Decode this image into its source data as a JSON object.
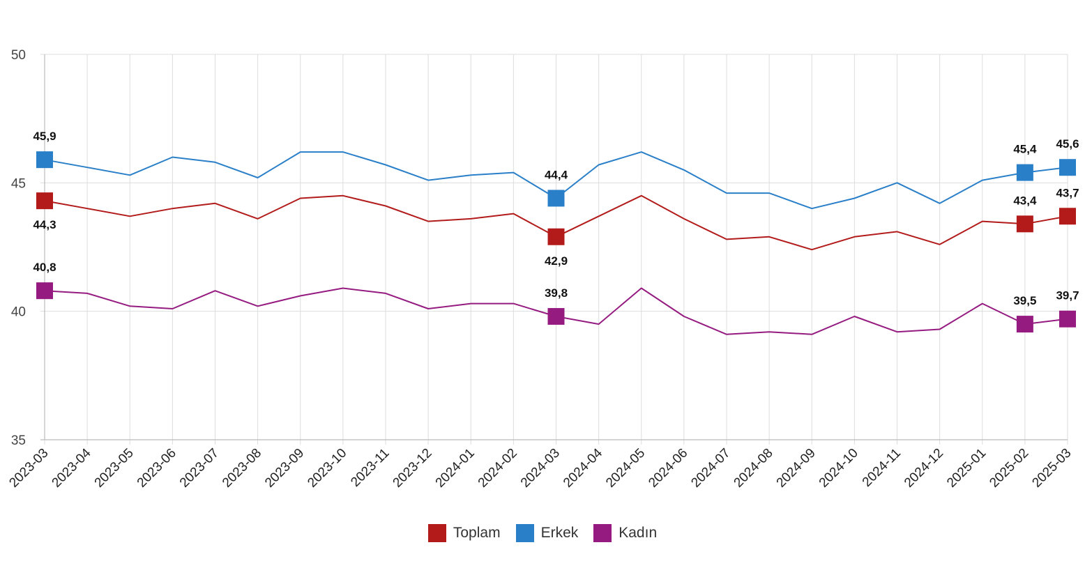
{
  "chart_data": {
    "type": "line",
    "categories": [
      "2023-03",
      "2023-04",
      "2023-05",
      "2023-06",
      "2023-07",
      "2023-08",
      "2023-09",
      "2023-10",
      "2023-11",
      "2023-12",
      "2024-01",
      "2024-02",
      "2024-03",
      "2024-04",
      "2024-05",
      "2024-06",
      "2024-07",
      "2024-08",
      "2024-09",
      "2024-10",
      "2024-11",
      "2024-12",
      "2025-01",
      "2025-02",
      "2025-03"
    ],
    "ylim": [
      35,
      50
    ],
    "yticks": [
      35,
      40,
      45,
      50
    ],
    "ytick_labels": [
      "35",
      "40",
      "45",
      "50"
    ],
    "grid": true,
    "legend_position": "bottom-center",
    "series": [
      {
        "name": "Toplam",
        "color": "#b31b1b",
        "values": [
          44.3,
          44.0,
          43.7,
          44.0,
          44.2,
          43.6,
          44.4,
          44.5,
          44.1,
          43.5,
          43.6,
          43.8,
          42.9,
          43.7,
          44.5,
          43.6,
          42.8,
          42.9,
          42.4,
          42.9,
          43.1,
          42.6,
          43.5,
          43.4,
          43.7
        ],
        "labels": [
          {
            "index": 0,
            "text": "44,3",
            "position": "below"
          },
          {
            "index": 12,
            "text": "42,9",
            "position": "below"
          },
          {
            "index": 23,
            "text": "43,4",
            "position": "above"
          },
          {
            "index": 24,
            "text": "43,7",
            "position": "above"
          }
        ]
      },
      {
        "name": "Erkek",
        "color": "#2a7fc9",
        "values": [
          45.9,
          45.6,
          45.3,
          46.0,
          45.8,
          45.2,
          46.2,
          46.2,
          45.7,
          45.1,
          45.3,
          45.4,
          44.4,
          45.7,
          46.2,
          45.5,
          44.6,
          44.6,
          44.0,
          44.4,
          45.0,
          44.2,
          45.1,
          45.4,
          45.6
        ],
        "labels": [
          {
            "index": 0,
            "text": "45,9",
            "position": "above"
          },
          {
            "index": 12,
            "text": "44,4",
            "position": "above"
          },
          {
            "index": 23,
            "text": "45,4",
            "position": "above"
          },
          {
            "index": 24,
            "text": "45,6",
            "position": "above"
          }
        ]
      },
      {
        "name": "Kadın",
        "color": "#951b81",
        "values": [
          40.8,
          40.7,
          40.2,
          40.1,
          40.8,
          40.2,
          40.6,
          40.9,
          40.7,
          40.1,
          40.3,
          40.3,
          39.8,
          39.5,
          40.9,
          39.8,
          39.1,
          39.2,
          39.1,
          39.8,
          39.2,
          39.3,
          40.3,
          39.5,
          39.7
        ],
        "labels": [
          {
            "index": 0,
            "text": "40,8",
            "position": "above"
          },
          {
            "index": 12,
            "text": "39,8",
            "position": "above"
          },
          {
            "index": 23,
            "text": "39,5",
            "position": "above"
          },
          {
            "index": 24,
            "text": "39,7",
            "position": "above"
          }
        ]
      }
    ]
  }
}
